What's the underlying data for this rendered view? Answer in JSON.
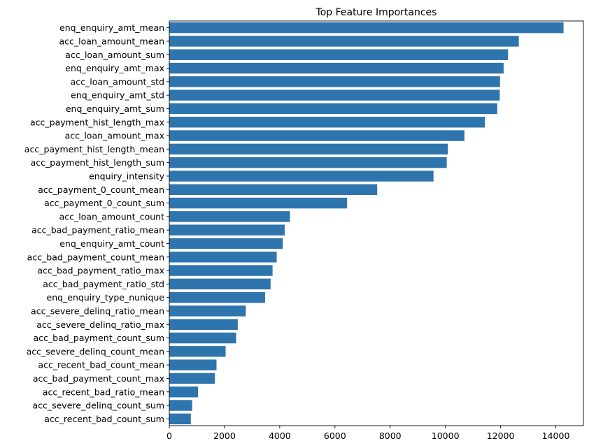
{
  "chart_data": {
    "type": "bar",
    "orientation": "horizontal",
    "title": "Top Feature Importances",
    "xlabel": "",
    "ylabel": "",
    "xlim": [
      0,
      15000
    ],
    "xticks": [
      0,
      2000,
      4000,
      6000,
      8000,
      10000,
      12000,
      14000
    ],
    "grid": false,
    "bar_color": "#2f75ad",
    "categories": [
      "enq_enquiry_amt_mean",
      "acc_loan_amount_mean",
      "acc_loan_amount_sum",
      "enq_enquiry_amt_max",
      "acc_loan_amount_std",
      "enq_enquiry_amt_std",
      "enq_enquiry_amt_sum",
      "acc_payment_hist_length_max",
      "acc_loan_amount_max",
      "acc_payment_hist_length_mean",
      "acc_payment_hist_length_sum",
      "enquiry_intensity",
      "acc_payment_0_count_mean",
      "acc_payment_0_count_sum",
      "acc_loan_amount_count",
      "acc_bad_payment_ratio_mean",
      "enq_enquiry_amt_count",
      "acc_bad_payment_count_mean",
      "acc_bad_payment_ratio_max",
      "acc_bad_payment_ratio_std",
      "enq_enquiry_type_nunique",
      "acc_severe_delinq_ratio_mean",
      "acc_severe_delinq_ratio_max",
      "acc_bad_payment_count_sum",
      "acc_severe_delinq_count_mean",
      "acc_recent_bad_count_mean",
      "acc_bad_payment_count_max",
      "acc_recent_bad_ratio_mean",
      "acc_severe_delinq_count_sum",
      "acc_recent_bad_count_sum"
    ],
    "values": [
      14280,
      12660,
      12270,
      12110,
      11980,
      11970,
      11880,
      11430,
      10690,
      10090,
      10050,
      9570,
      7530,
      6440,
      4370,
      4180,
      4110,
      3890,
      3740,
      3670,
      3470,
      2770,
      2480,
      2420,
      2040,
      1710,
      1650,
      1040,
      830,
      780
    ]
  }
}
